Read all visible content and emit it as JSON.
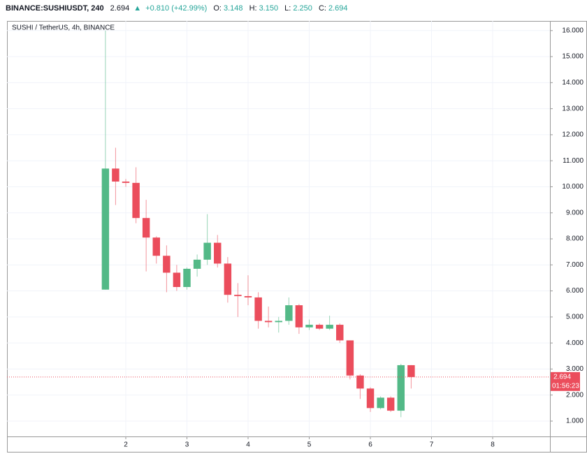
{
  "header": {
    "symbol": "BINANCE:SUSHIUSDT, 240",
    "last": "2.694",
    "change": "+0.810 (+42.99%)",
    "ohlc": [
      {
        "label": "O:",
        "value": "3.148"
      },
      {
        "label": "H:",
        "value": "3.150"
      },
      {
        "label": "L:",
        "value": "2.250"
      },
      {
        "label": "C:",
        "value": "2.694"
      }
    ]
  },
  "chart_data": {
    "type": "candlestick",
    "title": "SUSHI / TetherUS, 4h, BINANCE",
    "x": [
      1.667,
      1.833,
      2.0,
      2.167,
      2.333,
      2.5,
      2.667,
      2.833,
      3.0,
      3.167,
      3.333,
      3.5,
      3.667,
      3.833,
      4.0,
      4.167,
      4.333,
      4.5,
      4.667,
      4.833,
      5.0,
      5.167,
      5.333,
      5.5,
      5.667,
      5.833,
      6.0,
      6.167,
      6.333,
      6.5,
      6.667
    ],
    "open": [
      6.05,
      10.7,
      10.2,
      10.15,
      8.8,
      8.05,
      7.35,
      6.7,
      6.15,
      6.85,
      7.2,
      7.85,
      7.05,
      5.85,
      5.8,
      5.75,
      4.85,
      4.8,
      4.85,
      5.45,
      4.6,
      4.7,
      4.55,
      4.7,
      4.1,
      2.75,
      2.25,
      1.5,
      1.9,
      1.4,
      3.148
    ],
    "high": [
      16.0,
      11.5,
      10.3,
      10.75,
      9.5,
      8.1,
      7.75,
      7.0,
      6.9,
      7.4,
      8.95,
      8.15,
      7.3,
      6.3,
      6.6,
      5.95,
      5.4,
      5.0,
      5.75,
      5.5,
      4.9,
      4.75,
      5.05,
      4.75,
      4.1,
      2.8,
      2.3,
      1.95,
      1.95,
      3.2,
      3.15
    ],
    "low": [
      6.05,
      9.3,
      10.0,
      8.6,
      6.75,
      7.05,
      5.95,
      6.0,
      6.05,
      6.55,
      7.0,
      6.9,
      5.55,
      5.0,
      5.45,
      4.55,
      4.6,
      4.4,
      4.7,
      4.35,
      4.5,
      4.5,
      4.5,
      4.0,
      2.6,
      1.85,
      1.35,
      1.45,
      1.35,
      1.15,
      2.25
    ],
    "close": [
      10.7,
      10.2,
      10.15,
      8.8,
      8.05,
      7.35,
      6.7,
      6.15,
      6.85,
      7.2,
      7.85,
      7.05,
      5.85,
      5.8,
      5.75,
      4.85,
      4.8,
      4.85,
      5.45,
      4.6,
      4.7,
      4.55,
      4.7,
      4.1,
      2.75,
      2.25,
      1.5,
      1.9,
      1.4,
      3.148,
      2.694
    ],
    "up_color": "#53b987",
    "down_color": "#eb4d5c",
    "xlim": [
      0.057,
      8.937
    ],
    "ylim": [
      0.41,
      16.37
    ],
    "xticks": [
      2,
      3,
      4,
      5,
      6,
      7,
      8
    ],
    "yticks": [
      {
        "value": 1,
        "label": "1.000"
      },
      {
        "value": 2,
        "label": "2.000"
      },
      {
        "value": 3,
        "label": "3.000"
      },
      {
        "value": 4,
        "label": "4.000"
      },
      {
        "value": 5,
        "label": "5.000"
      },
      {
        "value": 6,
        "label": "6.000"
      },
      {
        "value": 7,
        "label": "7.000"
      },
      {
        "value": 8,
        "label": "8.000"
      },
      {
        "value": 9,
        "label": "9.000"
      },
      {
        "value": 10,
        "label": "10.000"
      },
      {
        "value": 11,
        "label": "11.000"
      },
      {
        "value": 12,
        "label": "12.000"
      },
      {
        "value": 13,
        "label": "13.000"
      },
      {
        "value": 14,
        "label": "14.000"
      },
      {
        "value": 15,
        "label": "15.000"
      },
      {
        "value": 16,
        "label": "16.000"
      }
    ],
    "grid": true,
    "last_price_label": "2.694",
    "countdown": "01:56:23"
  }
}
